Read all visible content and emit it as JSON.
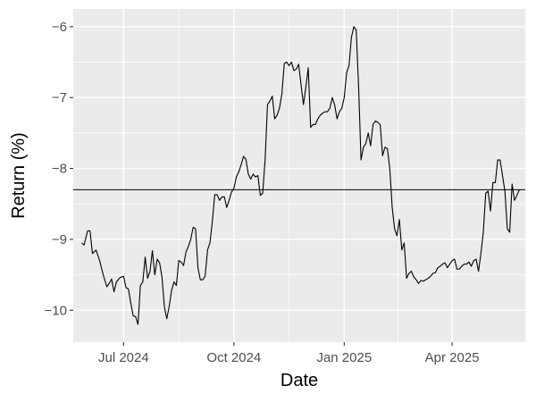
{
  "chart_data": {
    "type": "line",
    "title": "",
    "xlabel": "Date",
    "ylabel": "Return (%)",
    "x_axis_type": "date",
    "xlim": [
      "2024-05-20",
      "2025-06-01"
    ],
    "ylim": [
      -10.45,
      -5.75
    ],
    "x_ticks": [
      {
        "date": "2024-07-01",
        "label": "Jul 2024"
      },
      {
        "date": "2024-10-01",
        "label": "Oct 2024"
      },
      {
        "date": "2025-01-01",
        "label": "Jan 2025"
      },
      {
        "date": "2025-04-01",
        "label": "Apr 2025"
      }
    ],
    "y_ticks": [
      {
        "value": -10,
        "label": "−10"
      },
      {
        "value": -9,
        "label": "−9"
      },
      {
        "value": -8,
        "label": "−8"
      },
      {
        "value": -7,
        "label": "−7"
      },
      {
        "value": -6,
        "label": "−6"
      }
    ],
    "reference_line": {
      "y": -8.3
    },
    "grid": true,
    "background_color": "#ebebeb",
    "line_color": "#000000",
    "series": [
      {
        "x": [
          "2024-05-27",
          "2024-05-29",
          "2024-06-01",
          "2024-06-03",
          "2024-06-05",
          "2024-06-08",
          "2024-06-11",
          "2024-06-14",
          "2024-06-17",
          "2024-06-19",
          "2024-06-21",
          "2024-06-23",
          "2024-06-25",
          "2024-06-28",
          "2024-07-01",
          "2024-07-03",
          "2024-07-05",
          "2024-07-07",
          "2024-07-09",
          "2024-07-11",
          "2024-07-13",
          "2024-07-15",
          "2024-07-17",
          "2024-07-19",
          "2024-07-21",
          "2024-07-23",
          "2024-07-25",
          "2024-07-27",
          "2024-07-29",
          "2024-07-31",
          "2024-08-02",
          "2024-08-04",
          "2024-08-06",
          "2024-08-08",
          "2024-08-10",
          "2024-08-12",
          "2024-08-14",
          "2024-08-16",
          "2024-08-18",
          "2024-08-20",
          "2024-08-22",
          "2024-08-24",
          "2024-08-26",
          "2024-08-28",
          "2024-08-30",
          "2024-09-01",
          "2024-09-03",
          "2024-09-05",
          "2024-09-07",
          "2024-09-09",
          "2024-09-11",
          "2024-09-13",
          "2024-09-15",
          "2024-09-17",
          "2024-09-19",
          "2024-09-21",
          "2024-09-23",
          "2024-09-25",
          "2024-09-27",
          "2024-09-29",
          "2024-10-01",
          "2024-10-03",
          "2024-10-05",
          "2024-10-07",
          "2024-10-09",
          "2024-10-11",
          "2024-10-13",
          "2024-10-15",
          "2024-10-17",
          "2024-10-19",
          "2024-10-21",
          "2024-10-23",
          "2024-10-25",
          "2024-10-27",
          "2024-10-29",
          "2024-10-31",
          "2024-11-02",
          "2024-11-04",
          "2024-11-06",
          "2024-11-08",
          "2024-11-10",
          "2024-11-12",
          "2024-11-14",
          "2024-11-16",
          "2024-11-18",
          "2024-11-20",
          "2024-11-22",
          "2024-11-24",
          "2024-11-26",
          "2024-11-28",
          "2024-11-30",
          "2024-12-02",
          "2024-12-04",
          "2024-12-06",
          "2024-12-08",
          "2024-12-10",
          "2024-12-12",
          "2024-12-14",
          "2024-12-16",
          "2024-12-18",
          "2024-12-20",
          "2024-12-22",
          "2024-12-24",
          "2024-12-26",
          "2024-12-28",
          "2024-12-30",
          "2025-01-01",
          "2025-01-03",
          "2025-01-05",
          "2025-01-07",
          "2025-01-09",
          "2025-01-11",
          "2025-01-13",
          "2025-01-15",
          "2025-01-17",
          "2025-01-19",
          "2025-01-21",
          "2025-01-23",
          "2025-01-25",
          "2025-01-27",
          "2025-01-29",
          "2025-01-31",
          "2025-02-02",
          "2025-02-04",
          "2025-02-06",
          "2025-02-08",
          "2025-02-10",
          "2025-02-12",
          "2025-02-14",
          "2025-02-16",
          "2025-02-18",
          "2025-02-20",
          "2025-02-22",
          "2025-02-24",
          "2025-02-26",
          "2025-02-28",
          "2025-03-02",
          "2025-03-04",
          "2025-03-06",
          "2025-03-08",
          "2025-03-10",
          "2025-03-12",
          "2025-03-14",
          "2025-03-16",
          "2025-03-18",
          "2025-03-20",
          "2025-03-22",
          "2025-03-24",
          "2025-03-26",
          "2025-03-28",
          "2025-03-30",
          "2025-04-01",
          "2025-04-03",
          "2025-04-05",
          "2025-04-07",
          "2025-04-09",
          "2025-04-11",
          "2025-04-13",
          "2025-04-15",
          "2025-04-17",
          "2025-04-19",
          "2025-04-21",
          "2025-04-23",
          "2025-04-25",
          "2025-04-27",
          "2025-04-29",
          "2025-05-01",
          "2025-05-03",
          "2025-05-05",
          "2025-05-07",
          "2025-05-09",
          "2025-05-11",
          "2025-05-13",
          "2025-05-15",
          "2025-05-17",
          "2025-05-19",
          "2025-05-21",
          "2025-05-23",
          "2025-05-25",
          "2025-05-27"
        ],
        "y": [
          -9.05,
          -9.08,
          -8.88,
          -8.88,
          -9.2,
          -9.15,
          -9.3,
          -9.5,
          -9.67,
          -9.62,
          -9.56,
          -9.74,
          -9.6,
          -9.54,
          -9.52,
          -9.68,
          -9.7,
          -9.9,
          -10.08,
          -10.09,
          -10.2,
          -9.65,
          -9.6,
          -9.25,
          -9.55,
          -9.45,
          -9.16,
          -9.5,
          -9.28,
          -9.33,
          -9.53,
          -9.95,
          -10.12,
          -9.95,
          -9.72,
          -9.6,
          -9.65,
          -9.3,
          -9.32,
          -9.37,
          -9.18,
          -9.1,
          -9.0,
          -8.83,
          -8.85,
          -9.4,
          -9.57,
          -9.57,
          -9.52,
          -9.15,
          -9.05,
          -8.75,
          -8.37,
          -8.37,
          -8.45,
          -8.4,
          -8.4,
          -8.55,
          -8.45,
          -8.33,
          -8.28,
          -8.12,
          -8.05,
          -7.95,
          -7.83,
          -7.87,
          -8.08,
          -8.15,
          -8.08,
          -8.12,
          -8.1,
          -8.38,
          -8.35,
          -7.88,
          -7.1,
          -7.05,
          -6.98,
          -7.3,
          -7.25,
          -7.15,
          -6.95,
          -6.52,
          -6.5,
          -6.55,
          -6.5,
          -6.62,
          -6.6,
          -6.53,
          -6.82,
          -7.1,
          -6.85,
          -6.58,
          -7.42,
          -7.38,
          -7.38,
          -7.3,
          -7.25,
          -7.22,
          -7.2,
          -7.2,
          -7.15,
          -7.0,
          -7.1,
          -7.3,
          -7.2,
          -7.15,
          -7.0,
          -6.65,
          -6.55,
          -6.15,
          -6.0,
          -6.05,
          -6.85,
          -7.88,
          -7.7,
          -7.65,
          -7.5,
          -7.68,
          -7.38,
          -7.33,
          -7.35,
          -7.38,
          -7.82,
          -7.7,
          -7.72,
          -8.0,
          -8.55,
          -8.85,
          -8.95,
          -8.72,
          -9.15,
          -9.05,
          -9.55,
          -9.48,
          -9.45,
          -9.53,
          -9.57,
          -9.62,
          -9.58,
          -9.59,
          -9.57,
          -9.55,
          -9.52,
          -9.48,
          -9.47,
          -9.4,
          -9.38,
          -9.35,
          -9.33,
          -9.4,
          -9.35,
          -9.3,
          -9.28,
          -9.42,
          -9.42,
          -9.38,
          -9.35,
          -9.35,
          -9.32,
          -9.38,
          -9.3,
          -9.28,
          -9.45,
          -9.2,
          -8.9,
          -8.35,
          -8.32,
          -8.6,
          -8.2,
          -8.2,
          -7.88,
          -7.88,
          -8.1,
          -8.32,
          -8.85,
          -8.9,
          -8.22,
          -8.45,
          -8.38,
          -8.3
        ]
      }
    ]
  }
}
